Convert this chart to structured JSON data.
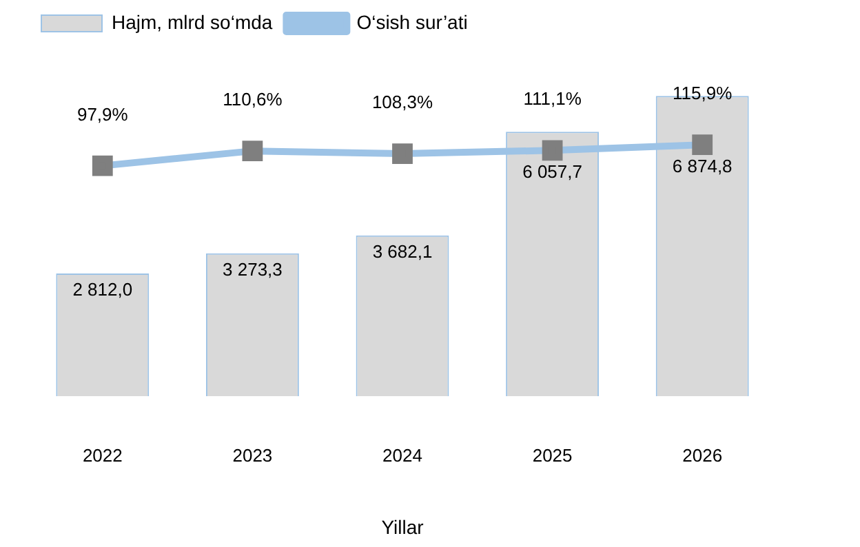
{
  "chart_data": {
    "type": "bar",
    "xlabel": "Yillar",
    "categories": [
      "2022",
      "2023",
      "2024",
      "2025",
      "2026"
    ],
    "series": [
      {
        "name": "Hajm, mlrd so‘mda",
        "color": "#d9d9d9",
        "values": [
          2812.0,
          3273.3,
          3682.1,
          6057.7,
          6874.8
        ],
        "value_labels": [
          "2 812,0",
          "3 273,3",
          "3 682,1",
          "6 057,7",
          "6 874,8"
        ]
      },
      {
        "name": "O‘sish sur’ati",
        "type": "line",
        "axis": "y2",
        "color": "#9dc3e6",
        "values": [
          97.9,
          110.6,
          108.3,
          111.1,
          115.9
        ],
        "value_labels": [
          "97,9%",
          "110,6%",
          "108,3%",
          "111,1%",
          "115,9%"
        ]
      }
    ],
    "legend": "top left",
    "grid": false,
    "marker": "square",
    "tick_labels": "x"
  }
}
